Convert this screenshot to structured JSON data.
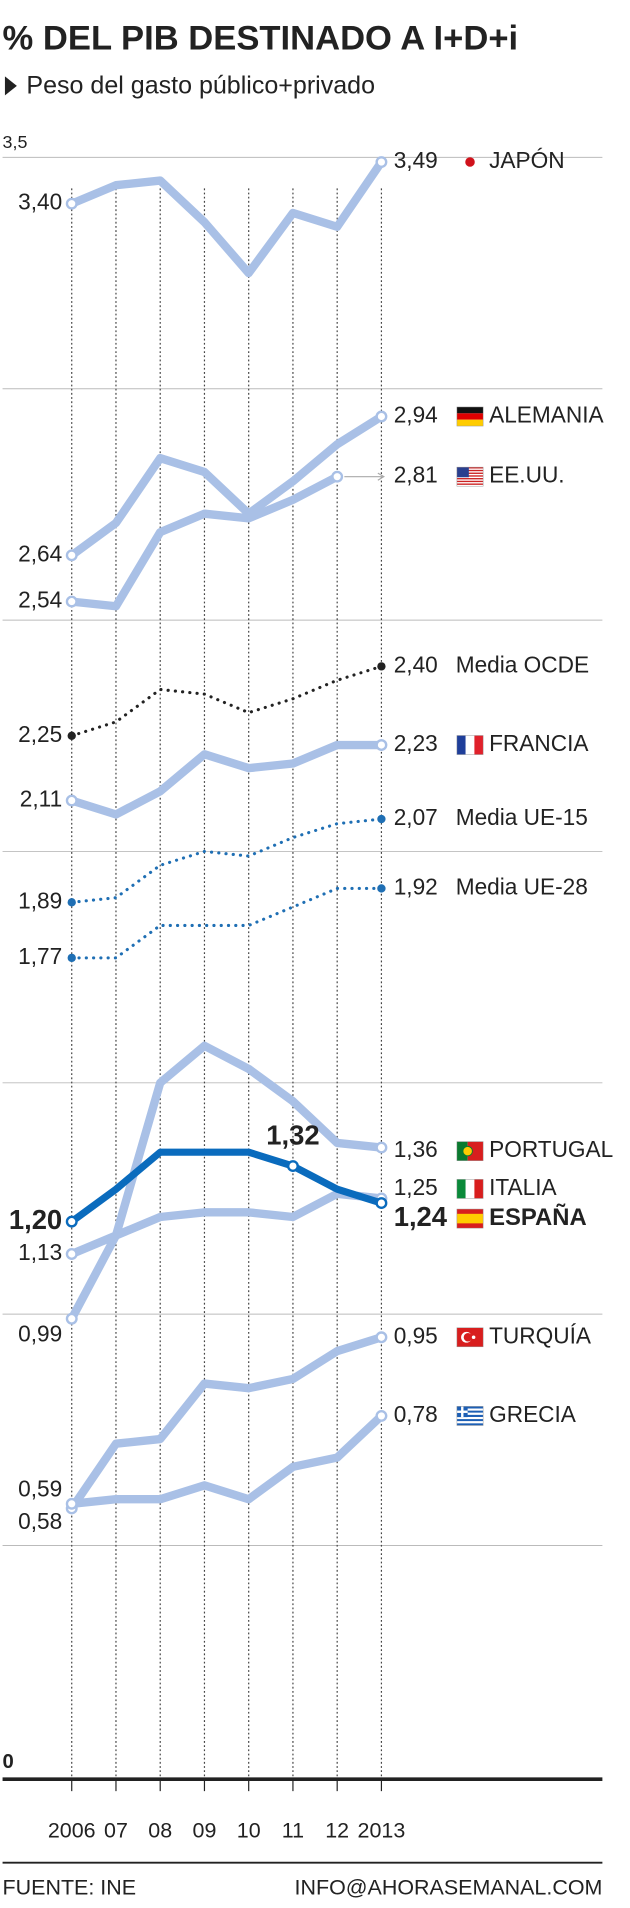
{
  "chart_data": {
    "type": "line",
    "title": "% DEL PIB DESTINADO A I+D+i",
    "subtitle": "Peso del gasto público+privado",
    "source": "FUENTE: INE",
    "credit": "INFO@AHORASEMANAL.COM",
    "categories": [
      "2006",
      "07",
      "08",
      "09",
      "10",
      "11",
      "12",
      "2013"
    ],
    "ylim": [
      0,
      3.5
    ],
    "yticks": [
      0,
      {
        "value": 3.5,
        "label": "3,5"
      }
    ],
    "grid_lines": [
      0.5,
      1,
      1.5,
      2,
      2.5,
      3
    ],
    "series": [
      {
        "name": "JAPÓN",
        "color": "#a9c0e6",
        "style": "solid",
        "flag": "jp",
        "values": [
          3.4,
          3.44,
          3.45,
          3.36,
          3.25,
          3.38,
          3.35,
          3.49
        ],
        "value_labels": [
          "3,40",
          null,
          null,
          null,
          null,
          null,
          null,
          "3,49"
        ]
      },
      {
        "name": "ALEMANIA",
        "color": "#a9c0e6",
        "style": "solid",
        "flag": "de",
        "values": [
          2.64,
          2.71,
          2.85,
          2.82,
          2.73,
          2.8,
          2.88,
          2.94
        ],
        "value_labels": [
          "2,64",
          null,
          null,
          null,
          null,
          null,
          null,
          "2,94"
        ]
      },
      {
        "name": "EE.UU.",
        "color": "#a9c0e6",
        "style": "solid",
        "flag": "us",
        "values": [
          2.54,
          2.53,
          2.69,
          2.73,
          2.72,
          2.76,
          2.81,
          null
        ],
        "value_labels": [
          "2,54",
          null,
          null,
          null,
          null,
          null,
          "2,81",
          null
        ]
      },
      {
        "name": "Media OCDE",
        "color": "#222222",
        "style": "dotted",
        "values": [
          2.25,
          2.28,
          2.35,
          2.34,
          2.3,
          2.33,
          2.37,
          2.4
        ],
        "value_labels": [
          "2,25",
          null,
          null,
          null,
          null,
          null,
          null,
          "2,40"
        ]
      },
      {
        "name": "FRANCIA",
        "color": "#a9c0e6",
        "style": "solid",
        "flag": "fr",
        "values": [
          2.11,
          2.08,
          2.13,
          2.21,
          2.18,
          2.19,
          2.23,
          2.23
        ],
        "value_labels": [
          "2,11",
          null,
          null,
          null,
          null,
          null,
          null,
          "2,23"
        ]
      },
      {
        "name": "Media UE-15",
        "color": "#1f6fb4",
        "style": "dotted",
        "values": [
          1.89,
          1.9,
          1.97,
          2.0,
          1.99,
          2.03,
          2.06,
          2.07
        ],
        "value_labels": [
          "1,89",
          null,
          null,
          null,
          null,
          null,
          null,
          "2,07"
        ]
      },
      {
        "name": "Media UE-28",
        "color": "#1f6fb4",
        "style": "dotted",
        "values": [
          1.77,
          1.77,
          1.84,
          1.84,
          1.84,
          1.88,
          1.92,
          1.92
        ],
        "value_labels": [
          "1,77",
          null,
          null,
          null,
          null,
          null,
          null,
          "1,92"
        ]
      },
      {
        "name": "PORTUGAL",
        "color": "#a9c0e6",
        "style": "solid",
        "flag": "pt",
        "values": [
          0.99,
          1.17,
          1.5,
          1.58,
          1.53,
          1.46,
          1.37,
          1.36
        ],
        "value_labels": [
          "0,99",
          null,
          null,
          null,
          null,
          null,
          null,
          "1,36"
        ]
      },
      {
        "name": "ITALIA",
        "color": "#a9c0e6",
        "style": "solid",
        "flag": "it",
        "values": [
          1.13,
          1.17,
          1.21,
          1.22,
          1.22,
          1.21,
          1.26,
          1.25
        ],
        "value_labels": [
          "1,13",
          null,
          null,
          null,
          null,
          null,
          null,
          "1,25"
        ]
      },
      {
        "name": "TURQUÍA",
        "color": "#a9c0e6",
        "style": "solid",
        "flag": "tr",
        "values": [
          0.58,
          0.72,
          0.73,
          0.85,
          0.84,
          0.86,
          0.92,
          0.95
        ],
        "value_labels": [
          "0,58",
          null,
          null,
          null,
          null,
          null,
          null,
          "0,95"
        ]
      },
      {
        "name": "GRECIA",
        "color": "#a9c0e6",
        "style": "solid",
        "flag": "gr",
        "values": [
          0.59,
          0.6,
          0.6,
          0.63,
          0.6,
          0.67,
          0.69,
          0.78
        ],
        "value_labels": [
          "0,59",
          null,
          null,
          null,
          null,
          null,
          null,
          "0,78"
        ]
      },
      {
        "name": "ESPAÑA",
        "color": "#0a6bbd",
        "style": "solid",
        "flag": "es",
        "bold": true,
        "values": [
          1.2,
          1.27,
          1.35,
          1.35,
          1.35,
          1.32,
          1.27,
          1.24
        ],
        "value_labels": [
          "1,20",
          null,
          null,
          null,
          null,
          "1,32",
          null,
          "1,24"
        ]
      }
    ]
  }
}
